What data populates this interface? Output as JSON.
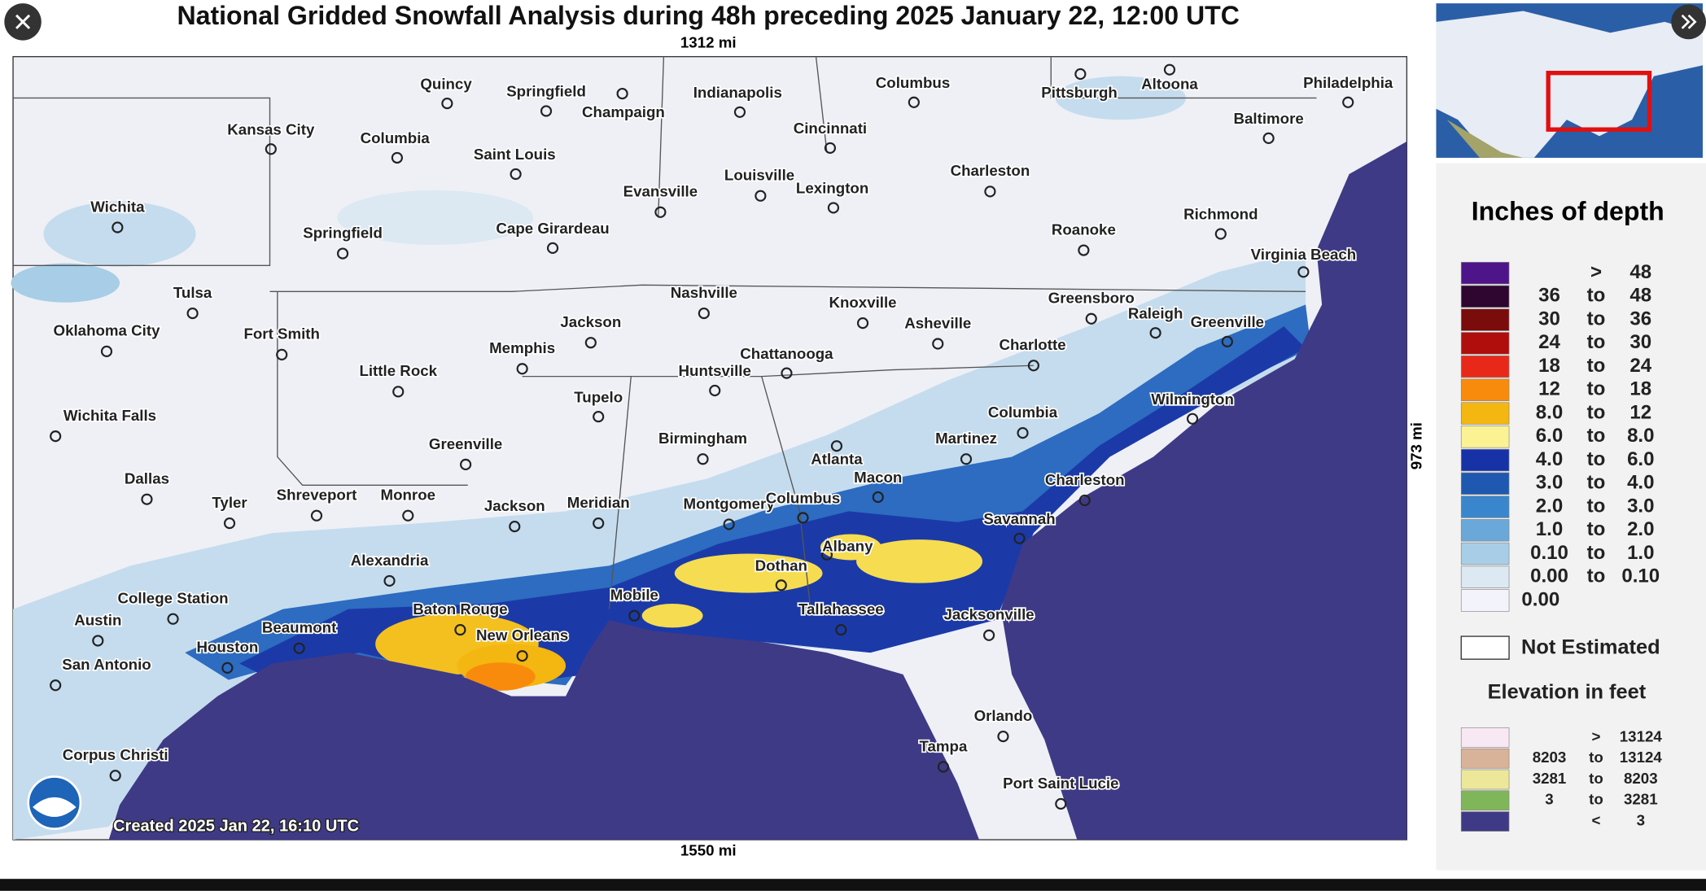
{
  "header": {
    "title": "National Gridded Snowfall Analysis during 48h preceding 2025 January 22, 12:00 UTC"
  },
  "scale": {
    "top": "1312 mi",
    "bottom": "1550 mi",
    "right": "973 mi"
  },
  "created": "Created 2025 Jan 22, 16:10 UTC",
  "cities": [
    "Quincy",
    "Springfield",
    "Champaign",
    "Indianapolis",
    "Columbus",
    "Pittsburgh",
    "Altoona",
    "Philadelphia",
    "Baltimore",
    "Kansas City",
    "Columbia",
    "Saint Louis",
    "Cincinnati",
    "Charleston",
    "Louisville",
    "Evansville",
    "Lexington",
    "Wichita",
    "Springfield",
    "Cape Girardeau",
    "Roanoke",
    "Richmond",
    "Virginia Beach",
    "Tulsa",
    "Nashville",
    "Knoxville",
    "Greensboro",
    "Raleigh",
    "Greenville",
    "Jackson",
    "Oklahoma City",
    "Fort Smith",
    "Asheville",
    "Charlotte",
    "Memphis",
    "Chattanooga",
    "Huntsville",
    "Little Rock",
    "Tupelo",
    "Wilmington",
    "Columbia",
    "Wichita Falls",
    "Birmingham",
    "Martinez",
    "Greenville",
    "Atlanta",
    "Macon",
    "Charleston",
    "Dallas",
    "Shreveport",
    "Monroe",
    "Tyler",
    "Jackson",
    "Meridian",
    "Montgomery",
    "Columbus",
    "Savannah",
    "Albany",
    "Dothan",
    "Alexandria",
    "College Station",
    "Mobile",
    "Baton Rouge",
    "Tallahassee",
    "Jacksonville",
    "Austin",
    "Beaumont",
    "New Orleans",
    "Houston",
    "San Antonio",
    "Orlando",
    "Corpus Christi",
    "Tampa",
    "Port Saint Lucie"
  ],
  "legend": {
    "title": "Inches of depth",
    "rows": [
      [
        ">",
        "48"
      ],
      [
        "36",
        "to",
        "48"
      ],
      [
        "30",
        "to",
        "36"
      ],
      [
        "24",
        "to",
        "30"
      ],
      [
        "18",
        "to",
        "24"
      ],
      [
        "12",
        "to",
        "18"
      ],
      [
        "8.0",
        "to",
        "12"
      ],
      [
        "6.0",
        "to",
        "8.0"
      ],
      [
        "4.0",
        "to",
        "6.0"
      ],
      [
        "3.0",
        "to",
        "4.0"
      ],
      [
        "2.0",
        "to",
        "3.0"
      ],
      [
        "1.0",
        "to",
        "2.0"
      ],
      [
        "0.10",
        "to",
        "1.0"
      ],
      [
        "0.00",
        "to",
        "0.10"
      ],
      [
        "0.00"
      ]
    ],
    "colors": [
      "#4e1489",
      "#2e0630",
      "#7a0c0c",
      "#b00d0d",
      "#e8291a",
      "#f98b0c",
      "#f4b610",
      "#fbf294",
      "#1732a6",
      "#1f58b0",
      "#3a86cc",
      "#6aa8d9",
      "#a8cde6",
      "#dce8f2",
      "#f3f3fb"
    ],
    "not_estimated": "Not Estimated",
    "elevation_title": "Elevation in feet",
    "elevation_rows": [
      [
        ">",
        "13124"
      ],
      [
        "8203",
        "to",
        "13124"
      ],
      [
        "3281",
        "to",
        "8203"
      ],
      [
        "3",
        "to",
        "3281"
      ],
      [
        "<",
        "3"
      ]
    ],
    "elevation_colors": [
      "#f8e8f4",
      "#d9b29a",
      "#ede79a",
      "#7fb65a",
      "#3f3a85"
    ]
  }
}
